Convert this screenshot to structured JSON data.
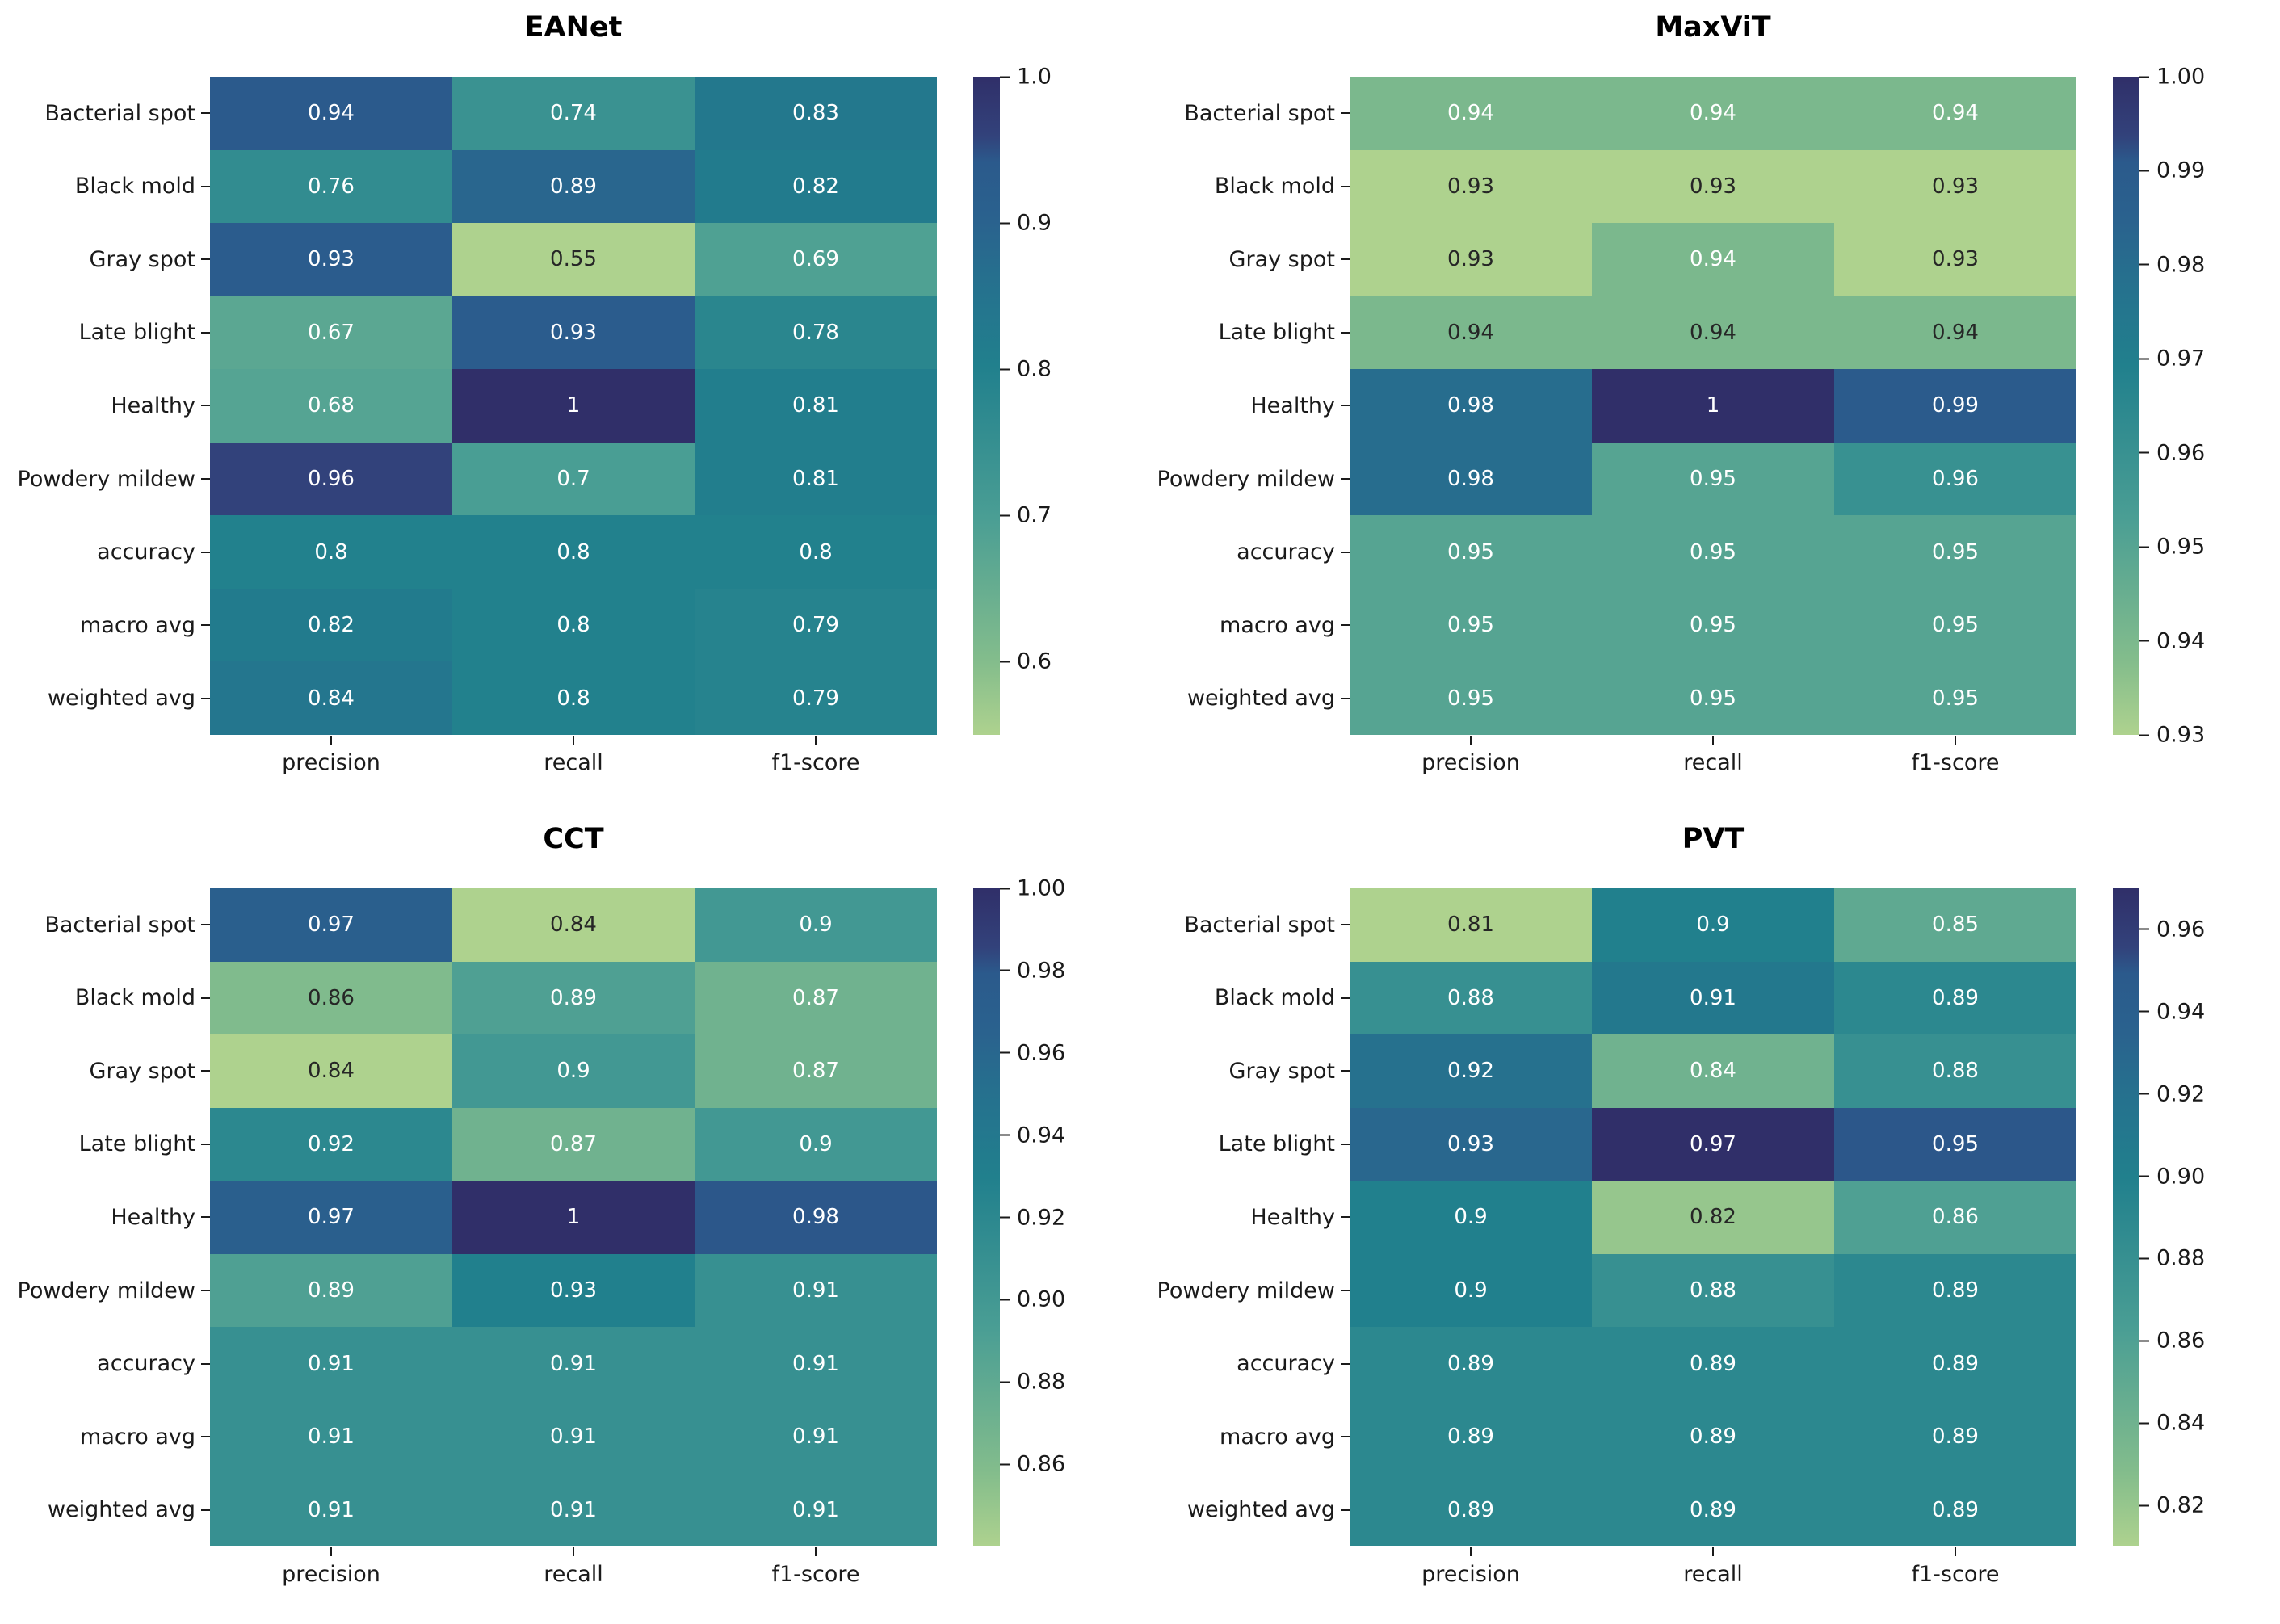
{
  "figure": {
    "background": "#ffffff",
    "label_color": "#1a1a1a",
    "title_color": "#000000"
  },
  "annotation_colors": {
    "light": "#ffffff",
    "dark": "#262626"
  },
  "colormap": {
    "name": "crest",
    "stops": [
      [
        0.0,
        "#aed28e"
      ],
      [
        0.11,
        "#84bd8c"
      ],
      [
        0.33,
        "#4a9e94"
      ],
      [
        0.56,
        "#21808d"
      ],
      [
        0.7,
        "#266f8e"
      ],
      [
        0.78,
        "#2a628e"
      ],
      [
        0.87,
        "#2b5a8c"
      ],
      [
        0.91,
        "#32427b"
      ],
      [
        1.0,
        "#302f69"
      ]
    ]
  },
  "chart_data": [
    {
      "type": "heatmap",
      "title": "EANet",
      "rows": [
        "Bacterial spot",
        "Black mold",
        "Gray spot",
        "Late blight",
        "Healthy",
        "Powdery mildew",
        "accuracy",
        "macro avg",
        "weighted avg"
      ],
      "columns": [
        "precision",
        "recall",
        "f1-score"
      ],
      "values": [
        [
          0.94,
          0.74,
          0.83
        ],
        [
          0.76,
          0.89,
          0.82
        ],
        [
          0.93,
          0.55,
          0.69
        ],
        [
          0.67,
          0.93,
          0.78
        ],
        [
          0.68,
          1,
          0.81
        ],
        [
          0.96,
          0.7,
          0.81
        ],
        [
          0.8,
          0.8,
          0.8
        ],
        [
          0.82,
          0.8,
          0.79
        ],
        [
          0.84,
          0.8,
          0.79
        ]
      ],
      "vmin": 0.55,
      "vmax": 1.0,
      "colorbar_ticks": [
        {
          "value": 1.0,
          "label": "1.0"
        },
        {
          "value": 0.9,
          "label": "0.9"
        },
        {
          "value": 0.8,
          "label": "0.8"
        },
        {
          "value": 0.7,
          "label": "0.7"
        },
        {
          "value": 0.6,
          "label": "0.6"
        }
      ],
      "dark_text_cells": [
        [
          2,
          1
        ]
      ]
    },
    {
      "type": "heatmap",
      "title": "MaxViT",
      "rows": [
        "Bacterial spot",
        "Black mold",
        "Gray spot",
        "Late blight",
        "Healthy",
        "Powdery mildew",
        "accuracy",
        "macro avg",
        "weighted avg"
      ],
      "columns": [
        "precision",
        "recall",
        "f1-score"
      ],
      "values": [
        [
          0.94,
          0.94,
          0.94
        ],
        [
          0.93,
          0.93,
          0.93
        ],
        [
          0.93,
          0.94,
          0.93
        ],
        [
          0.94,
          0.94,
          0.94
        ],
        [
          0.98,
          1,
          0.99
        ],
        [
          0.98,
          0.95,
          0.96
        ],
        [
          0.95,
          0.95,
          0.95
        ],
        [
          0.95,
          0.95,
          0.95
        ],
        [
          0.95,
          0.95,
          0.95
        ]
      ],
      "vmin": 0.93,
      "vmax": 1.0,
      "colorbar_ticks": [
        {
          "value": 1.0,
          "label": "1.00"
        },
        {
          "value": 0.99,
          "label": "0.99"
        },
        {
          "value": 0.98,
          "label": "0.98"
        },
        {
          "value": 0.97,
          "label": "0.97"
        },
        {
          "value": 0.96,
          "label": "0.96"
        },
        {
          "value": 0.95,
          "label": "0.95"
        },
        {
          "value": 0.94,
          "label": "0.94"
        },
        {
          "value": 0.93,
          "label": "0.93"
        }
      ],
      "dark_text_cells": [
        [
          1,
          0
        ],
        [
          1,
          1
        ],
        [
          1,
          2
        ],
        [
          2,
          0
        ],
        [
          2,
          2
        ],
        [
          3,
          0
        ],
        [
          3,
          1
        ],
        [
          3,
          2
        ]
      ]
    },
    {
      "type": "heatmap",
      "title": "CCT",
      "rows": [
        "Bacterial spot",
        "Black mold",
        "Gray spot",
        "Late blight",
        "Healthy",
        "Powdery mildew",
        "accuracy",
        "macro avg",
        "weighted avg"
      ],
      "columns": [
        "precision",
        "recall",
        "f1-score"
      ],
      "values": [
        [
          0.97,
          0.84,
          0.9
        ],
        [
          0.86,
          0.89,
          0.87
        ],
        [
          0.84,
          0.9,
          0.87
        ],
        [
          0.92,
          0.87,
          0.9
        ],
        [
          0.97,
          1,
          0.98
        ],
        [
          0.89,
          0.93,
          0.91
        ],
        [
          0.91,
          0.91,
          0.91
        ],
        [
          0.91,
          0.91,
          0.91
        ],
        [
          0.91,
          0.91,
          0.91
        ]
      ],
      "vmin": 0.84,
      "vmax": 1.0,
      "colorbar_ticks": [
        {
          "value": 1.0,
          "label": "1.00"
        },
        {
          "value": 0.98,
          "label": "0.98"
        },
        {
          "value": 0.96,
          "label": "0.96"
        },
        {
          "value": 0.94,
          "label": "0.94"
        },
        {
          "value": 0.92,
          "label": "0.92"
        },
        {
          "value": 0.9,
          "label": "0.90"
        },
        {
          "value": 0.88,
          "label": "0.88"
        },
        {
          "value": 0.86,
          "label": "0.86"
        }
      ],
      "dark_text_cells": [
        [
          0,
          1
        ],
        [
          1,
          0
        ],
        [
          2,
          0
        ]
      ]
    },
    {
      "type": "heatmap",
      "title": "PVT",
      "rows": [
        "Bacterial spot",
        "Black mold",
        "Gray spot",
        "Late blight",
        "Healthy",
        "Powdery mildew",
        "accuracy",
        "macro avg",
        "weighted avg"
      ],
      "columns": [
        "precision",
        "recall",
        "f1-score"
      ],
      "values": [
        [
          0.81,
          0.9,
          0.85
        ],
        [
          0.88,
          0.91,
          0.89
        ],
        [
          0.92,
          0.84,
          0.88
        ],
        [
          0.93,
          0.97,
          0.95
        ],
        [
          0.9,
          0.82,
          0.86
        ],
        [
          0.9,
          0.88,
          0.89
        ],
        [
          0.89,
          0.89,
          0.89
        ],
        [
          0.89,
          0.89,
          0.89
        ],
        [
          0.89,
          0.89,
          0.89
        ]
      ],
      "vmin": 0.81,
      "vmax": 0.97,
      "colorbar_ticks": [
        {
          "value": 0.96,
          "label": "0.96"
        },
        {
          "value": 0.94,
          "label": "0.94"
        },
        {
          "value": 0.92,
          "label": "0.92"
        },
        {
          "value": 0.9,
          "label": "0.90"
        },
        {
          "value": 0.88,
          "label": "0.88"
        },
        {
          "value": 0.86,
          "label": "0.86"
        },
        {
          "value": 0.84,
          "label": "0.84"
        },
        {
          "value": 0.82,
          "label": "0.82"
        }
      ],
      "dark_text_cells": [
        [
          0,
          0
        ],
        [
          4,
          1
        ]
      ]
    }
  ]
}
